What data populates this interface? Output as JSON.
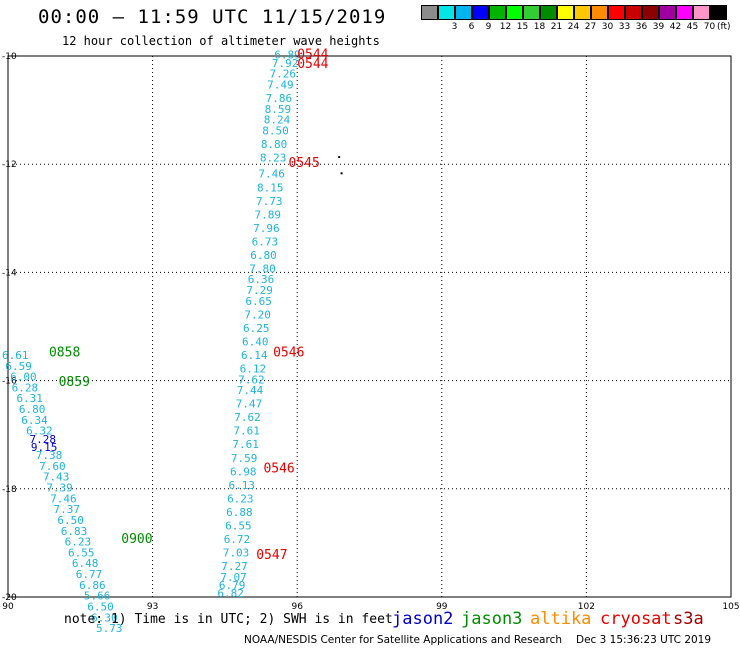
{
  "header": {
    "title": "00:00 – 11:59 UTC 11/15/2019",
    "subtitle": "12 hour collection of altimeter wave heights"
  },
  "scale": {
    "unit": "(ft)",
    "swatches": [
      {
        "label": "",
        "color": "#8c8c8c"
      },
      {
        "label": "3",
        "color": "#00e5e5"
      },
      {
        "label": "6",
        "color": "#00b4f0"
      },
      {
        "label": "9",
        "color": "#0000ff"
      },
      {
        "label": "12",
        "color": "#00b400"
      },
      {
        "label": "15",
        "color": "#00ff00"
      },
      {
        "label": "18",
        "color": "#32cd32"
      },
      {
        "label": "21",
        "color": "#008c00"
      },
      {
        "label": "24",
        "color": "#ffff00"
      },
      {
        "label": "27",
        "color": "#ffc800"
      },
      {
        "label": "30",
        "color": "#ff8c00"
      },
      {
        "label": "33",
        "color": "#ff0000"
      },
      {
        "label": "36",
        "color": "#c80000"
      },
      {
        "label": "39",
        "color": "#8b0000"
      },
      {
        "label": "42",
        "color": "#a000a0"
      },
      {
        "label": "45",
        "color": "#ff00ff"
      },
      {
        "label": "70",
        "color": "#ff96c8"
      },
      {
        "label": "",
        "color": "#000000"
      }
    ]
  },
  "axes": {
    "x_ticks": [
      "90",
      "93",
      "96",
      "99",
      "102",
      "105"
    ],
    "y_ticks": [
      "-10",
      "-12",
      "-14",
      "-16",
      "-18",
      "-20"
    ],
    "lon_range": [
      90,
      105
    ],
    "lat_range": [
      -20,
      -10
    ]
  },
  "colors": {
    "swh": "#1eb4dc",
    "swh_high": "#0000c8",
    "cryosat": "#e60000",
    "jason3": "#008c00",
    "jason2": "#0000cc",
    "altika": "#ff8c00",
    "s3a": "#a00000"
  },
  "swh_points": [
    {
      "lon": 95.8,
      "lat": -10.05,
      "v": "6.89"
    },
    {
      "lon": 95.75,
      "lat": -10.2,
      "v": "7.92"
    },
    {
      "lon": 95.7,
      "lat": -10.4,
      "v": "7.26"
    },
    {
      "lon": 95.65,
      "lat": -10.6,
      "v": "7.49"
    },
    {
      "lon": 95.62,
      "lat": -10.85,
      "v": "7.86"
    },
    {
      "lon": 95.6,
      "lat": -11.05,
      "v": "8.59"
    },
    {
      "lon": 95.58,
      "lat": -11.25,
      "v": "8.24"
    },
    {
      "lon": 95.55,
      "lat": -11.45,
      "v": "8.50"
    },
    {
      "lon": 95.52,
      "lat": -11.7,
      "v": "8.80"
    },
    {
      "lon": 95.5,
      "lat": -11.95,
      "v": "8.23"
    },
    {
      "lon": 95.47,
      "lat": -12.25,
      "v": "7.46"
    },
    {
      "lon": 95.44,
      "lat": -12.5,
      "v": "8.15"
    },
    {
      "lon": 95.42,
      "lat": -12.75,
      "v": "7.73"
    },
    {
      "lon": 95.39,
      "lat": -13.0,
      "v": "7.89"
    },
    {
      "lon": 95.36,
      "lat": -13.25,
      "v": "7.96"
    },
    {
      "lon": 95.33,
      "lat": -13.5,
      "v": "6.73"
    },
    {
      "lon": 95.3,
      "lat": -13.75,
      "v": "6.80"
    },
    {
      "lon": 95.28,
      "lat": -14.0,
      "v": "7.80"
    },
    {
      "lon": 95.25,
      "lat": -14.2,
      "v": "6.36"
    },
    {
      "lon": 95.22,
      "lat": -14.4,
      "v": "7.29"
    },
    {
      "lon": 95.2,
      "lat": -14.6,
      "v": "6.65"
    },
    {
      "lon": 95.18,
      "lat": -14.85,
      "v": "7.20"
    },
    {
      "lon": 95.15,
      "lat": -15.1,
      "v": "6.25"
    },
    {
      "lon": 95.13,
      "lat": -15.35,
      "v": "6.40"
    },
    {
      "lon": 95.11,
      "lat": -15.6,
      "v": "6.14"
    },
    {
      "lon": 95.08,
      "lat": -15.85,
      "v": "6.12"
    },
    {
      "lon": 95.05,
      "lat": -16.05,
      "v": "7.62"
    },
    {
      "lon": 95.02,
      "lat": -16.25,
      "v": "7.44"
    },
    {
      "lon": 95.0,
      "lat": -16.5,
      "v": "7.47"
    },
    {
      "lon": 94.97,
      "lat": -16.75,
      "v": "7.62"
    },
    {
      "lon": 94.95,
      "lat": -17.0,
      "v": "7.61"
    },
    {
      "lon": 94.93,
      "lat": -17.25,
      "v": "7.61"
    },
    {
      "lon": 94.9,
      "lat": -17.5,
      "v": "7.59"
    },
    {
      "lon": 94.88,
      "lat": -17.75,
      "v": "6.98"
    },
    {
      "lon": 94.85,
      "lat": -18.0,
      "v": "6.13"
    },
    {
      "lon": 94.82,
      "lat": -18.25,
      "v": "6.23"
    },
    {
      "lon": 94.8,
      "lat": -18.5,
      "v": "6.88"
    },
    {
      "lon": 94.78,
      "lat": -18.75,
      "v": "6.55"
    },
    {
      "lon": 94.75,
      "lat": -19.0,
      "v": "6.72"
    },
    {
      "lon": 94.73,
      "lat": -19.25,
      "v": "7.03"
    },
    {
      "lon": 94.7,
      "lat": -19.5,
      "v": "7.27"
    },
    {
      "lon": 94.68,
      "lat": -19.7,
      "v": "7.07"
    },
    {
      "lon": 94.65,
      "lat": -19.85,
      "v": "6.79"
    },
    {
      "lon": 94.62,
      "lat": -20.0,
      "v": "6.82"
    },
    {
      "lon": 90.15,
      "lat": -15.6,
      "v": "6.61"
    },
    {
      "lon": 90.22,
      "lat": -15.8,
      "v": "6.59"
    },
    {
      "lon": 90.32,
      "lat": -16.0,
      "v": "6.00"
    },
    {
      "lon": 90.35,
      "lat": -16.2,
      "v": "6.28"
    },
    {
      "lon": 90.45,
      "lat": -16.4,
      "v": "6.31"
    },
    {
      "lon": 90.5,
      "lat": -16.6,
      "v": "6.80"
    },
    {
      "lon": 90.55,
      "lat": -16.8,
      "v": "6.34"
    },
    {
      "lon": 90.65,
      "lat": -17.0,
      "v": "6.32"
    },
    {
      "lon": 90.72,
      "lat": -17.15,
      "v": "7.28",
      "high": true
    },
    {
      "lon": 90.75,
      "lat": -17.3,
      "v": "9.15",
      "high": true
    },
    {
      "lon": 90.85,
      "lat": -17.45,
      "v": "7.38"
    },
    {
      "lon": 90.92,
      "lat": -17.65,
      "v": "7.60"
    },
    {
      "lon": 91.0,
      "lat": -17.85,
      "v": "7.43"
    },
    {
      "lon": 91.07,
      "lat": -18.05,
      "v": "7.39"
    },
    {
      "lon": 91.15,
      "lat": -18.25,
      "v": "7.46"
    },
    {
      "lon": 91.22,
      "lat": -18.45,
      "v": "7.37"
    },
    {
      "lon": 91.3,
      "lat": -18.65,
      "v": "6.50"
    },
    {
      "lon": 91.37,
      "lat": -18.85,
      "v": "6.83"
    },
    {
      "lon": 91.45,
      "lat": -19.05,
      "v": "6.23"
    },
    {
      "lon": 91.52,
      "lat": -19.25,
      "v": "6.55"
    },
    {
      "lon": 91.6,
      "lat": -19.45,
      "v": "6.48"
    },
    {
      "lon": 91.68,
      "lat": -19.65,
      "v": "6.77"
    },
    {
      "lon": 91.75,
      "lat": -19.85,
      "v": "6.86"
    },
    {
      "lon": 91.85,
      "lat": -20.05,
      "v": "5.66"
    },
    {
      "lon": 91.92,
      "lat": -20.25,
      "v": "6.50"
    },
    {
      "lon": 92.0,
      "lat": -20.45,
      "v": "6.30"
    },
    {
      "lon": 92.1,
      "lat": -20.65,
      "v": "5.73"
    }
  ],
  "time_labels": [
    {
      "lon": 96.0,
      "lat": -10.05,
      "v": "0544",
      "sat": "cryosat"
    },
    {
      "lon": 96.0,
      "lat": -10.22,
      "v": "0544",
      "sat": "cryosat"
    },
    {
      "lon": 95.82,
      "lat": -12.05,
      "v": "0545",
      "sat": "cryosat"
    },
    {
      "lon": 95.5,
      "lat": -15.55,
      "v": "0546",
      "sat": "cryosat"
    },
    {
      "lon": 95.3,
      "lat": -17.7,
      "v": "0546",
      "sat": "cryosat"
    },
    {
      "lon": 95.15,
      "lat": -19.3,
      "v": "0547",
      "sat": "cryosat"
    },
    {
      "lon": 90.85,
      "lat": -15.55,
      "v": "0858",
      "sat": "jason3"
    },
    {
      "lon": 91.05,
      "lat": -16.1,
      "v": "0859",
      "sat": "jason3"
    },
    {
      "lon": 92.35,
      "lat": -19.0,
      "v": "0900",
      "sat": "jason3"
    }
  ],
  "land": [
    {
      "lon": 96.85,
      "lat": -11.85
    },
    {
      "lon": 96.9,
      "lat": -12.15
    }
  ],
  "note": "note: 1) Time is in UTC; 2) SWH is in feet",
  "legend": [
    {
      "label": "jason2",
      "color": "#0000cc"
    },
    {
      "label": "jason3",
      "color": "#008c00"
    },
    {
      "label": "altika",
      "color": "#ff8c00"
    },
    {
      "label": "cryosat",
      "color": "#e60000"
    },
    {
      "label": "s3a",
      "color": "#a00000"
    }
  ],
  "footer": {
    "credit": "NOAA/NESDIS Center for Satellite Applications and Research",
    "timestamp": "Dec  3 15:36:23 UTC 2019"
  }
}
